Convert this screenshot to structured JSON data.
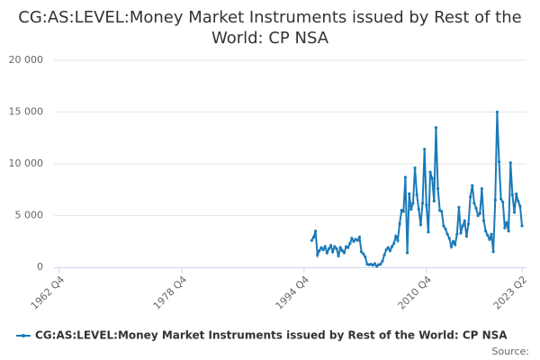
{
  "chart_data": {
    "type": "line",
    "title": "CG:AS:LEVEL:Money Market Instruments issued by Rest of the World: CP NSA",
    "source": "Source:",
    "x": [
      "1995 Q4",
      "1996 Q1",
      "1996 Q2",
      "1996 Q3",
      "1996 Q4",
      "1997 Q1",
      "1997 Q2",
      "1997 Q3",
      "1997 Q4",
      "1998 Q1",
      "1998 Q2",
      "1998 Q3",
      "1998 Q4",
      "1999 Q1",
      "1999 Q2",
      "1999 Q3",
      "1999 Q4",
      "2000 Q1",
      "2000 Q2",
      "2000 Q3",
      "2000 Q4",
      "2001 Q1",
      "2001 Q2",
      "2001 Q3",
      "2001 Q4",
      "2002 Q1",
      "2002 Q2",
      "2002 Q3",
      "2002 Q4",
      "2003 Q1",
      "2003 Q2",
      "2003 Q3",
      "2003 Q4",
      "2004 Q1",
      "2004 Q2",
      "2004 Q3",
      "2004 Q4",
      "2005 Q1",
      "2005 Q2",
      "2005 Q3",
      "2005 Q4",
      "2006 Q1",
      "2006 Q2",
      "2006 Q3",
      "2006 Q4",
      "2007 Q1",
      "2007 Q2",
      "2007 Q3",
      "2007 Q4",
      "2008 Q1",
      "2008 Q2",
      "2008 Q3",
      "2008 Q4",
      "2009 Q1",
      "2009 Q2",
      "2009 Q3",
      "2009 Q4",
      "2010 Q1",
      "2010 Q2",
      "2010 Q3",
      "2010 Q4",
      "2011 Q1",
      "2011 Q2",
      "2011 Q3",
      "2011 Q4",
      "2012 Q1",
      "2012 Q2",
      "2012 Q3",
      "2012 Q4",
      "2013 Q1",
      "2013 Q2",
      "2013 Q3",
      "2013 Q4",
      "2014 Q1",
      "2014 Q2",
      "2014 Q3",
      "2014 Q4",
      "2015 Q1",
      "2015 Q2",
      "2015 Q3",
      "2015 Q4",
      "2016 Q1",
      "2016 Q2",
      "2016 Q3",
      "2016 Q4",
      "2017 Q1",
      "2017 Q2",
      "2017 Q3",
      "2017 Q4",
      "2018 Q1",
      "2018 Q2",
      "2018 Q3",
      "2018 Q4",
      "2019 Q1",
      "2019 Q2",
      "2019 Q3",
      "2019 Q4",
      "2020 Q1",
      "2020 Q2",
      "2020 Q3",
      "2020 Q4",
      "2021 Q1",
      "2021 Q2",
      "2021 Q3",
      "2021 Q4",
      "2022 Q1",
      "2022 Q2",
      "2022 Q3",
      "2022 Q4",
      "2023 Q1",
      "2023 Q2"
    ],
    "series": [
      {
        "name": "CG:AS:LEVEL:Money Market Instruments issued by Rest of the World: CP NSA",
        "color": "#1a7ab8",
        "values": [
          2600,
          2900,
          3500,
          1200,
          1600,
          1900,
          1700,
          2000,
          1400,
          1800,
          2100,
          1500,
          2000,
          1800,
          1100,
          1900,
          1600,
          1400,
          2000,
          1900,
          2300,
          2800,
          2500,
          2700,
          2600,
          2900,
          1500,
          1300,
          1000,
          300,
          250,
          300,
          200,
          350,
          100,
          250,
          300,
          600,
          1200,
          1700,
          1900,
          1600,
          2000,
          2300,
          3000,
          2600,
          4200,
          5500,
          5400,
          8700,
          1400,
          7100,
          5600,
          6200,
          9600,
          7000,
          5600,
          4100,
          6200,
          11400,
          6000,
          3400,
          9200,
          8600,
          6400,
          13500,
          7600,
          5500,
          5400,
          4000,
          3700,
          3200,
          2800,
          2000,
          2500,
          2200,
          3200,
          5800,
          3300,
          4000,
          4500,
          3000,
          4200,
          6800,
          7900,
          6200,
          5700,
          5000,
          5200,
          7600,
          4500,
          3500,
          3100,
          2700,
          3200,
          1500,
          6500,
          15000,
          10200,
          6600,
          6300,
          3800,
          4300,
          3500,
          10100,
          7000,
          5300,
          7100,
          6400,
          5900,
          4000
        ]
      }
    ],
    "xlim": [
      "1962 Q4",
      "2023 Q2"
    ],
    "xticks": [
      "1962 Q4",
      "1978 Q4",
      "1994 Q4",
      "2010 Q4",
      "2023 Q2"
    ],
    "ylim": [
      0,
      20000
    ],
    "yticks": [
      0,
      {
        "value": 5000,
        "label": "5 000"
      },
      {
        "value": 10000,
        "label": "10 000"
      },
      {
        "value": 15000,
        "label": "15 000"
      },
      {
        "value": 20000,
        "label": "20 000"
      }
    ],
    "grid": true
  }
}
